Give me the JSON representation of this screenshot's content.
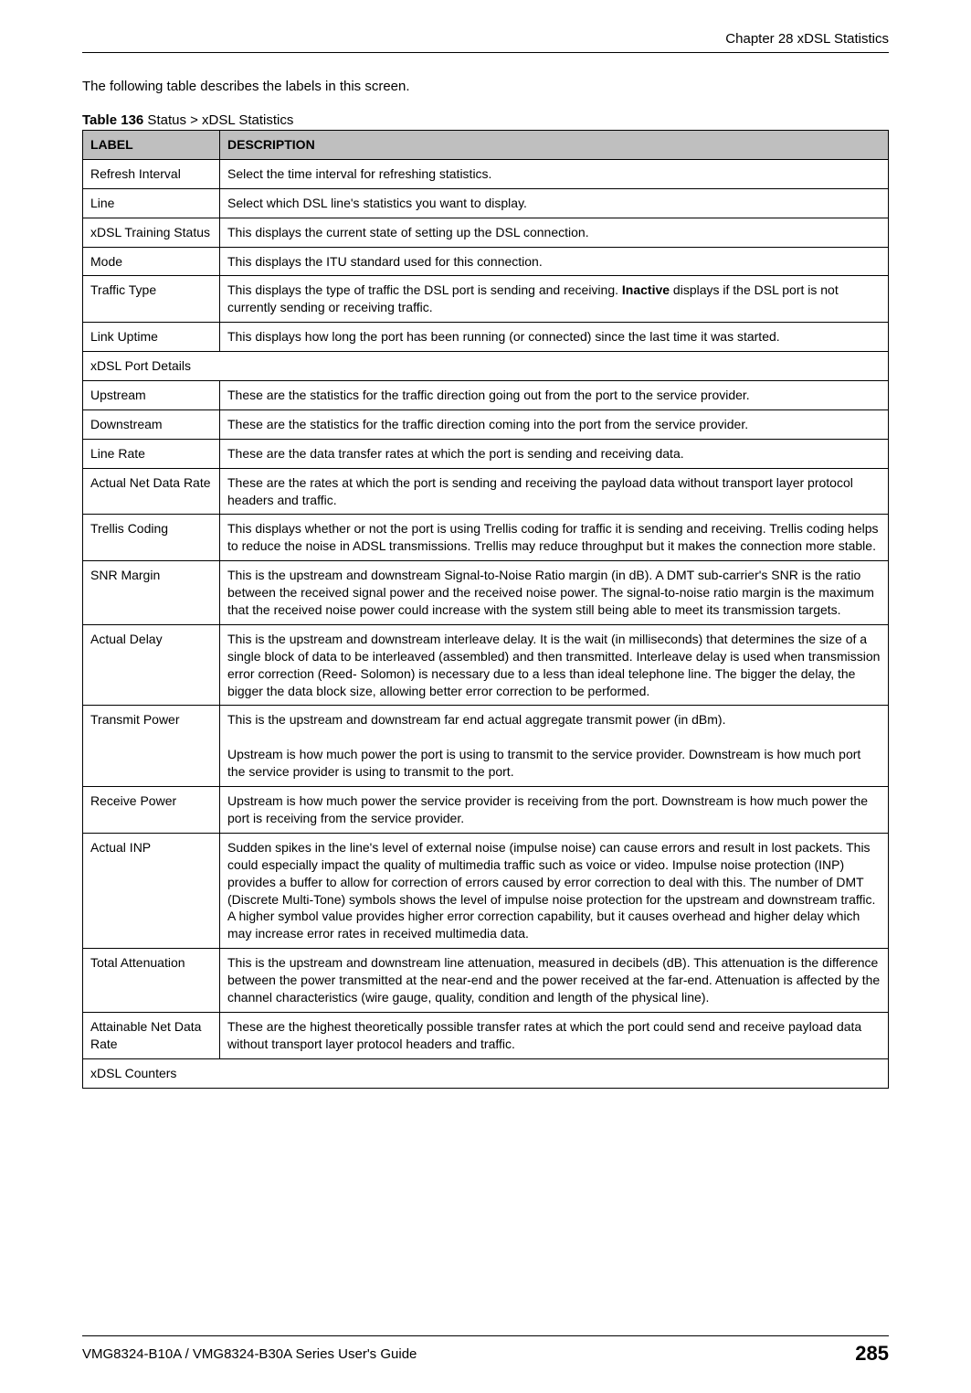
{
  "chapter_header": "Chapter 28 xDSL Statistics",
  "intro_text": "The following table describes the labels in this screen.",
  "table_caption_prefix": "Table 136",
  "table_caption_rest": "   Status >  xDSL Statistics",
  "columns": {
    "label": "LABEL",
    "description": "DESCRIPTION"
  },
  "rows": [
    {
      "label": "Refresh Interval",
      "desc": "Select the time interval for refreshing statistics."
    },
    {
      "label": "Line",
      "desc": "Select which DSL line's statistics you want to display."
    },
    {
      "label": "xDSL Training Status",
      "desc": "This displays the current state of setting up the DSL connection."
    },
    {
      "label": "Mode",
      "desc": "This displays the ITU standard used for this connection."
    },
    {
      "label": "Traffic Type",
      "desc_pre": "This displays the type of traffic the DSL port is sending and receiving. ",
      "desc_bold": "Inactive",
      "desc_post": " displays if the DSL port is not currently sending or receiving traffic."
    },
    {
      "label": "Link Uptime",
      "desc": "This displays how long the port has been running (or connected) since the last time it was started."
    },
    {
      "section": "xDSL Port Details"
    },
    {
      "label": "Upstream",
      "desc": "These are the statistics for the traffic direction going out from the port to the service provider."
    },
    {
      "label": "Downstream",
      "desc": "These are the statistics for the traffic direction coming into the port from the service provider."
    },
    {
      "label": "Line Rate",
      "desc": "These are the data transfer rates at which the port is sending and receiving data."
    },
    {
      "label": "Actual Net Data Rate",
      "desc": "These are the rates at which the port is sending and receiving the payload data without transport layer protocol headers and traffic."
    },
    {
      "label": "Trellis Coding",
      "desc": "This displays whether or not the port is using Trellis coding for traffic it is sending and receiving. Trellis coding helps to reduce the noise in ADSL transmissions. Trellis may reduce throughput but it makes the connection more stable."
    },
    {
      "label": "SNR Margin",
      "desc": "This is the upstream and downstream Signal-to-Noise Ratio margin (in dB). A DMT sub-carrier's SNR is the ratio between the received signal power and the received noise power. The signal-to-noise ratio margin is the maximum that the received noise power could increase with the system still being able to meet its transmission targets."
    },
    {
      "label": "Actual Delay",
      "desc": "This is the upstream and downstream interleave delay. It is the wait (in milliseconds) that determines the size of a single block of data to be interleaved (assembled) and then transmitted. Interleave delay is used when transmission error correction (Reed- Solomon) is necessary due to a less than ideal telephone line. The bigger the delay, the bigger the data block size, allowing better error correction to be performed."
    },
    {
      "label": "Transmit Power",
      "desc": "This is the upstream and downstream far end actual aggregate transmit power (in dBm).\n\nUpstream is how much power the port is using to transmit to the service provider. Downstream is how much port the service provider is using to transmit to the port."
    },
    {
      "label": "Receive Power",
      "desc": "Upstream is how much power the service provider is receiving from the port. Downstream is how much power the port is receiving from the service provider."
    },
    {
      "label": "Actual INP",
      "desc": "Sudden spikes in the line's level of external noise (impulse noise) can cause errors and result in lost packets. This could especially impact the quality of multimedia traffic such as voice or video. Impulse noise protection (INP) provides a buffer to allow for correction of errors caused by error correction to deal with this. The number of DMT (Discrete Multi-Tone) symbols shows the level of impulse noise protection for the upstream and downstream traffic. A higher symbol value provides higher error correction capability, but it causes overhead and higher delay which may increase error rates in received multimedia data."
    },
    {
      "label": "Total Attenuation",
      "desc": "This is the upstream and downstream line attenuation, measured in decibels (dB). This attenuation is the difference between the power transmitted at the near-end and the power received at the far-end. Attenuation is affected by the channel characteristics (wire gauge, quality, condition and length of the physical line)."
    },
    {
      "label": "Attainable Net Data Rate",
      "desc": "These are the highest theoretically possible transfer rates at which the port could send and receive payload data without transport layer protocol headers and traffic."
    },
    {
      "section": "xDSL Counters"
    }
  ],
  "footer_text": "VMG8324-B10A / VMG8324-B30A Series User's Guide",
  "page_number": "285"
}
